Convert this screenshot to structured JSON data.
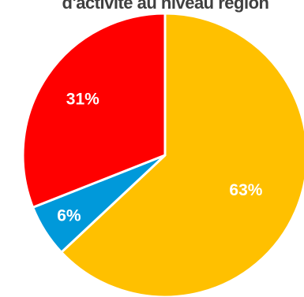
{
  "chart_data": {
    "type": "pie",
    "title": "d'activité au niveau région",
    "slices": [
      {
        "label": "63%",
        "value": 63,
        "color": "#FFC000"
      },
      {
        "label": "6%",
        "value": 6,
        "color": "#0099DA"
      },
      {
        "label": "31%",
        "value": 31,
        "color": "#FF0000"
      }
    ],
    "start": "12 o'clock",
    "direction": "clockwise",
    "slice_border_color": "#FFFFFF",
    "data_label_color": "#FFFFFF",
    "legend": "none"
  }
}
